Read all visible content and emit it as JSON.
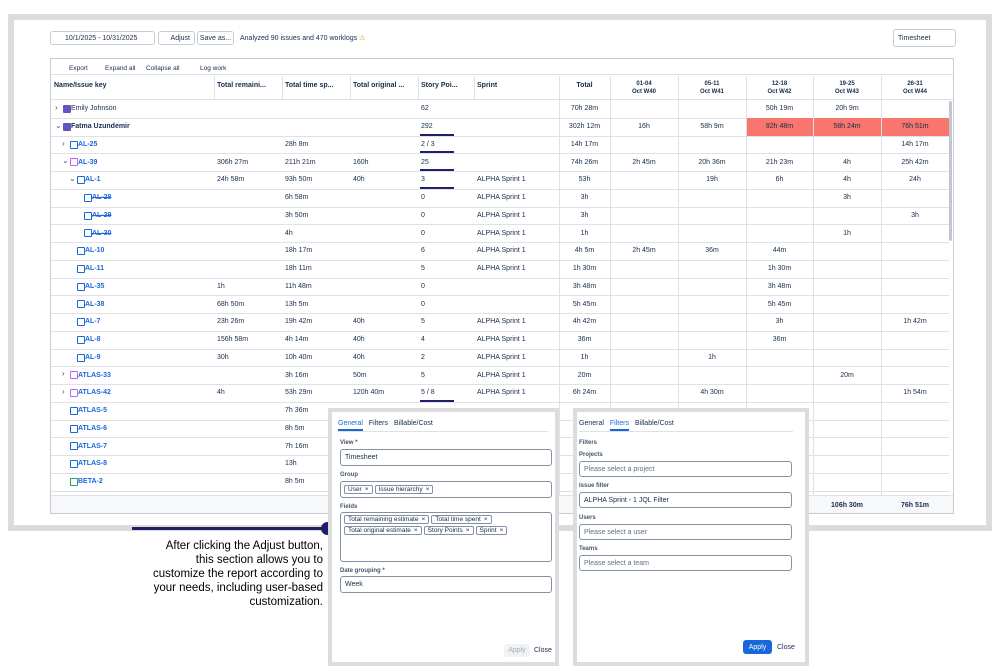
{
  "toolbar": {
    "date_range": "10/1/2025 - 10/31/2025",
    "adjust": "Adjust",
    "save_as": "Save as...",
    "analyzed": "Analyzed 90 issues and 470 worklogs",
    "view_select": "Timesheet"
  },
  "actions": [
    "Export",
    "Expand all",
    "Collapse all",
    "Log work"
  ],
  "table": {
    "headers": [
      "Name/Issue key",
      "Total remaini...",
      "Total time sp...",
      "Total original ...",
      "Story Poi...",
      "Sprint",
      "Total",
      {
        "range": "01-04",
        "week": "Oct W40"
      },
      {
        "range": "05-11",
        "week": "Oct W41"
      },
      {
        "range": "12-18",
        "week": "Oct W42"
      },
      {
        "range": "19-25",
        "week": "Oct W43"
      },
      {
        "range": "26-31",
        "week": "Oct W44"
      }
    ],
    "rows": [
      {
        "key": "Emily Johnson",
        "cells": [
          null,
          null,
          null,
          "62",
          null,
          "70h 28m",
          null,
          null,
          "50h 19m",
          "20h 9m",
          null
        ]
      },
      {
        "key": "Fatma Uzundemir",
        "cells": [
          null,
          null,
          null,
          "292",
          null,
          "302h 12m",
          "16h",
          "58h 9m",
          "92h 48m",
          "58h 24m",
          "76h 51m"
        ]
      },
      {
        "key": "AL-25",
        "cells": [
          null,
          "28h 8m",
          null,
          "2 / 3",
          null,
          "14h 17m",
          null,
          null,
          null,
          null,
          "14h 17m"
        ]
      },
      {
        "key": "AL-39",
        "cells": [
          "306h 27m",
          "211h 21m",
          "160h",
          "25",
          null,
          "74h 26m",
          "2h 45m",
          "20h 36m",
          "21h 23m",
          "4h",
          "25h 42m"
        ]
      },
      {
        "key": "AL-1",
        "cells": [
          "24h 58m",
          "93h 50m",
          "40h",
          "3",
          "ALPHA Sprint 1",
          "53h",
          null,
          "19h",
          "6h",
          "4h",
          "24h"
        ]
      },
      {
        "key": "AL-28",
        "cells": [
          null,
          "6h 58m",
          null,
          "0",
          "ALPHA Sprint 1",
          "3h",
          null,
          null,
          null,
          "3h",
          null
        ]
      },
      {
        "key": "AL-29",
        "cells": [
          null,
          "3h 50m",
          null,
          "0",
          "ALPHA Sprint 1",
          "3h",
          null,
          null,
          null,
          null,
          "3h"
        ]
      },
      {
        "key": "AL-30",
        "cells": [
          null,
          "4h",
          null,
          "0",
          "ALPHA Sprint 1",
          "1h",
          null,
          null,
          null,
          "1h",
          null
        ]
      },
      {
        "key": "AL-10",
        "cells": [
          null,
          "18h 17m",
          null,
          "6",
          "ALPHA Sprint 1",
          "4h 5m",
          "2h 45m",
          "36m",
          "44m",
          null,
          null
        ]
      },
      {
        "key": "AL-11",
        "cells": [
          null,
          "18h 11m",
          null,
          "5",
          "ALPHA Sprint 1",
          "1h 30m",
          null,
          null,
          "1h 30m",
          null,
          null
        ]
      },
      {
        "key": "AL-35",
        "cells": [
          "1h",
          "11h 48m",
          null,
          "0",
          null,
          "3h 48m",
          null,
          null,
          "3h 48m",
          null,
          null
        ]
      },
      {
        "key": "AL-38",
        "cells": [
          "68h 50m",
          "13h 5m",
          null,
          "0",
          null,
          "5h 45m",
          null,
          null,
          "5h 45m",
          null,
          null
        ]
      },
      {
        "key": "AL-7",
        "cells": [
          "23h 26m",
          "19h 42m",
          "40h",
          "5",
          "ALPHA Sprint 1",
          "4h 42m",
          null,
          null,
          "3h",
          null,
          "1h 42m"
        ]
      },
      {
        "key": "AL-8",
        "cells": [
          "156h 58m",
          "4h 14m",
          "40h",
          "4",
          "ALPHA Sprint 1",
          "36m",
          null,
          null,
          "36m",
          null,
          null
        ]
      },
      {
        "key": "AL-9",
        "cells": [
          "30h",
          "10h 40m",
          "40h",
          "2",
          "ALPHA Sprint 1",
          "1h",
          null,
          "1h",
          null,
          null,
          null
        ]
      },
      {
        "key": "ATLAS-33",
        "cells": [
          null,
          "3h 16m",
          "50m",
          "5",
          "ALPHA Sprint 1",
          "20m",
          null,
          null,
          null,
          "20m",
          null
        ]
      },
      {
        "key": "ATLAS-42",
        "cells": [
          "4h",
          "53h 29m",
          "120h 40m",
          "5 / 8",
          "ALPHA Sprint 1",
          "6h 24m",
          null,
          "4h 30m",
          null,
          null,
          "1h 54m"
        ]
      },
      {
        "key": "ATLAS-5",
        "cells": [
          null,
          "7h 36m",
          null,
          null,
          null,
          null,
          null,
          null,
          null,
          null,
          null
        ]
      },
      {
        "key": "ATLAS-6",
        "cells": [
          null,
          "8h 5m",
          null,
          null,
          null,
          null,
          null,
          null,
          null,
          null,
          null
        ]
      },
      {
        "key": "ATLAS-7",
        "cells": [
          null,
          "7h 16m",
          null,
          null,
          null,
          null,
          null,
          null,
          null,
          null,
          null
        ]
      },
      {
        "key": "ATLAS-8",
        "cells": [
          null,
          "13h",
          null,
          null,
          null,
          null,
          null,
          null,
          null,
          null,
          null
        ]
      },
      {
        "key": "BETA-2",
        "cells": [
          null,
          "8h 5m",
          null,
          null,
          null,
          null,
          null,
          null,
          null,
          null,
          null
        ]
      }
    ],
    "footer": [
      null,
      null,
      null,
      null,
      null,
      null,
      null,
      null,
      null,
      "106h 30m",
      "76h 51m"
    ]
  },
  "panel_general": {
    "tabs": [
      "General",
      "Filters",
      "Billable/Cost"
    ],
    "view_label": "View *",
    "view_value": "Timesheet",
    "group_label": "Group",
    "group_tags": [
      "User",
      "Issue hierarchy"
    ],
    "fields_label": "Fields",
    "field_tags": [
      "Total remaining estimate",
      "Total time spent",
      "Total original estimate",
      "Story Points",
      "Sprint"
    ],
    "date_label": "Date grouping *",
    "date_value": "Week",
    "apply": "Apply",
    "close": "Close"
  },
  "panel_filters": {
    "tabs": [
      "General",
      "Filters",
      "Billable/Cost"
    ],
    "heading": "Filters",
    "projects_label": "Projects",
    "projects_placeholder": "Please select a project",
    "issue_filter_label": "Issue filter",
    "issue_filter_value": "ALPHA Sprint - 1 JQL Filter",
    "users_label": "Users",
    "users_placeholder": "Please select a user",
    "teams_label": "Teams",
    "teams_placeholder": "Please select a team",
    "apply": "Apply",
    "close": "Close"
  },
  "annotation": {
    "lines": [
      "After clicking the Adjust button,",
      "this section allows you to",
      "customize the report according to",
      "your needs, including user-based",
      "customization."
    ]
  }
}
